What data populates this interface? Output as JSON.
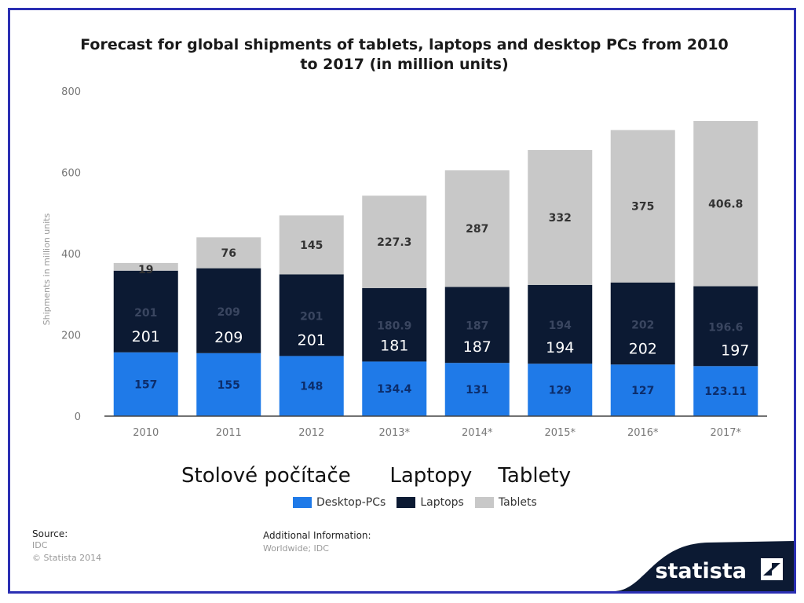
{
  "header": {
    "title_line1": "Forecast for global shipments of tablets, laptops and desktop PCs from 2010",
    "title_line2": "to 2017 (in million units)"
  },
  "chart_data": {
    "type": "bar",
    "stacked": true,
    "categories": [
      "2010",
      "2011",
      "2012",
      "2013*",
      "2014*",
      "2015*",
      "2016*",
      "2017*"
    ],
    "series": [
      {
        "name": "Desktop-PCs",
        "color": "#1f7ae8",
        "values": [
          157,
          155,
          148,
          134.4,
          131,
          129,
          127,
          123.11
        ]
      },
      {
        "name": "Laptops",
        "color": "#0c1a33",
        "values": [
          201,
          209,
          201,
          180.9,
          187,
          194,
          202,
          196.6
        ]
      },
      {
        "name": "Tablets",
        "color": "#c8c8c8",
        "values": [
          19,
          76,
          145,
          227.3,
          287,
          332,
          375,
          406.8
        ]
      }
    ],
    "laptop_overlay_labels": [
      "201",
      "209",
      "201",
      "181",
      "187",
      "194",
      "202",
      "197"
    ],
    "ylabel": "Shipments in million units",
    "ylim": [
      0,
      800
    ],
    "yticks": [
      0,
      200,
      400,
      600,
      800
    ],
    "grid": false,
    "legend": "bottom-center"
  },
  "overlay_text": {
    "desktop": "Stolové počítače",
    "laptops": "Laptopy",
    "tablets": "Tablety"
  },
  "footer": {
    "source_label": "Source:",
    "source_lines": [
      "IDC",
      "© Statista 2014"
    ],
    "info_label": "Additional Information:",
    "info_text": "Worldwide; IDC",
    "brand": "statista"
  }
}
